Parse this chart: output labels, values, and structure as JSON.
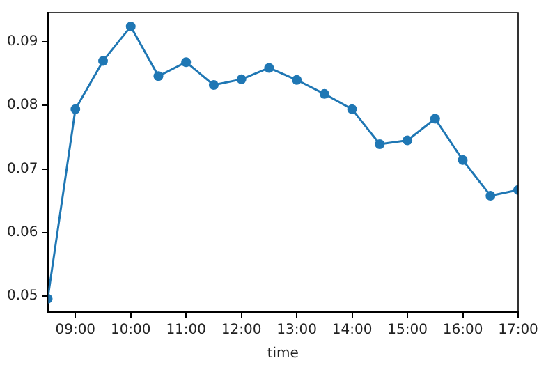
{
  "chart_data": {
    "type": "line",
    "xlabel": "time",
    "marker": "circle",
    "grid": false,
    "legend": false,
    "x": [
      8.5,
      9,
      9.5,
      10,
      10.5,
      11,
      11.5,
      12,
      12.5,
      13,
      13.5,
      14,
      14.5,
      15,
      15.5,
      16,
      16.5,
      17
    ],
    "series": [
      {
        "color": "#1f77b4",
        "values": [
          0.0496,
          0.0794,
          0.087,
          0.0924,
          0.0846,
          0.0868,
          0.0832,
          0.0841,
          0.0859,
          0.084,
          0.0818,
          0.0794,
          0.0739,
          0.0745,
          0.0779,
          0.0714,
          0.0658,
          0.0667
        ]
      }
    ],
    "xlim": [
      8.5,
      17
    ],
    "xticks": [
      {
        "value": 9,
        "label": "09:00"
      },
      {
        "value": 10,
        "label": "10:00"
      },
      {
        "value": 11,
        "label": "11:00"
      },
      {
        "value": 12,
        "label": "12:00"
      },
      {
        "value": 13,
        "label": "13:00"
      },
      {
        "value": 14,
        "label": "14:00"
      },
      {
        "value": 15,
        "label": "15:00"
      },
      {
        "value": 16,
        "label": "16:00"
      },
      {
        "value": 17,
        "label": "17:00"
      }
    ],
    "ylim": [
      0.0475,
      0.0946
    ],
    "yticks": [
      0.05,
      0.06,
      0.07,
      0.08,
      0.09
    ]
  }
}
